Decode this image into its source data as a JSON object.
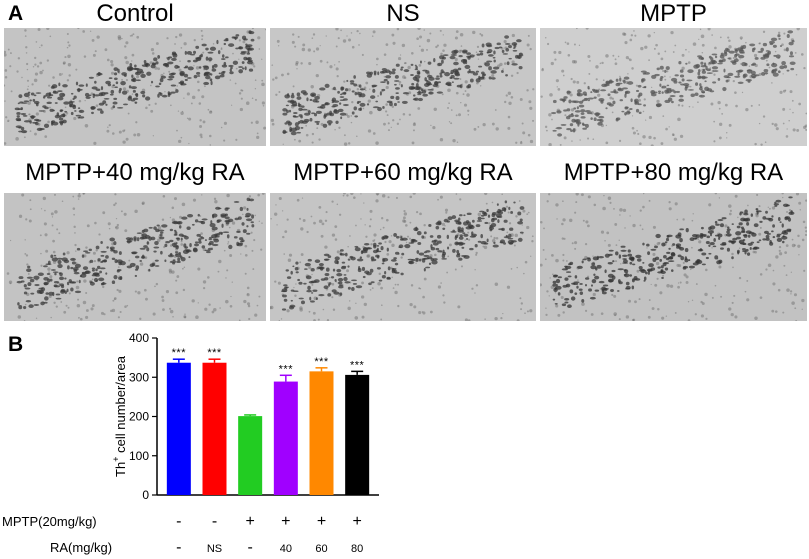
{
  "panel_a_label": "A",
  "panel_b_label": "B",
  "micrographs": [
    {
      "title": "Control",
      "shade": "#c4c4c4",
      "tone": "#3a3a3a"
    },
    {
      "title": "NS",
      "shade": "#c7c7c7",
      "tone": "#3e3e3e"
    },
    {
      "title": "MPTP",
      "shade": "#cfcfcf",
      "tone": "#555555"
    },
    {
      "title": "MPTP+40 mg/kg RA",
      "shade": "#c3c3c3",
      "tone": "#3a3a3a"
    },
    {
      "title": "MPTP+60 mg/kg RA",
      "shade": "#c5c5c5",
      "tone": "#383838"
    },
    {
      "title": "MPTP+80 mg/kg RA",
      "shade": "#c2c2c2",
      "tone": "#333333"
    }
  ],
  "chart_data": {
    "type": "bar",
    "ylabel_main": "Th",
    "ylabel_sup": "+",
    "ylabel_rest": " cell number/area",
    "ylim": [
      0,
      400
    ],
    "yticks": [
      "0",
      "100",
      "200",
      "300",
      "400"
    ],
    "series": [
      {
        "values": [
          337,
          337,
          201,
          289,
          315,
          306
        ],
        "errors": [
          9,
          9,
          3,
          16,
          9,
          9
        ],
        "colors": [
          "#0000ff",
          "#ff0000",
          "#22cc22",
          "#a000ff",
          "#ff8800",
          "#000000"
        ],
        "significance": [
          "***",
          "***",
          "",
          "***",
          "***",
          "***"
        ]
      }
    ],
    "conditions": [
      {
        "label": "MPTP(20mg/kg)",
        "values": [
          "-",
          "-",
          "+",
          "+",
          "+",
          "+"
        ]
      },
      {
        "label": "RA(mg/kg)",
        "values": [
          "-",
          "NS",
          "-",
          "40",
          "60",
          "80"
        ]
      }
    ]
  }
}
